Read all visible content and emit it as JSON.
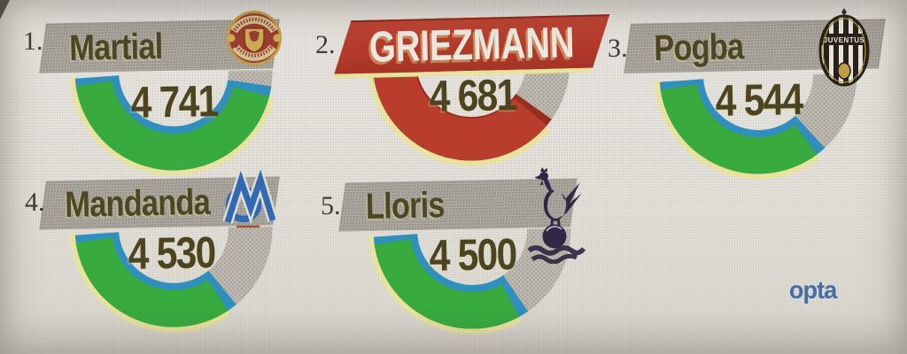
{
  "colors": {
    "green": "#35b13d",
    "blue": "#2d93c6",
    "yellow": "#f2eda2",
    "red": "#bf3a29",
    "maroon": "#992b1b",
    "track": "#c6c2ba",
    "track_dot": "#a19c92",
    "text_olive": "#4c441f",
    "banner_gray": "#d5d1ca",
    "banner_red": "#bb3827",
    "paper": "#e9e6e0",
    "opta_blue": "#2d5fa7"
  },
  "chart_data": {
    "type": "gauge-list",
    "title": "",
    "description": "Five ranked footballers, each with a value shown inside a partial ring gauge; rank 2 is highlighted with a red banner and red arc.",
    "legend_position": "none",
    "players": [
      {
        "rank": "1.",
        "name": "Martial",
        "value": "4 741",
        "value_num": 4741,
        "club": "Manchester United",
        "arc_color_key": "green",
        "banner_style": "gray",
        "arc_end_deg": 13,
        "highlighted": false
      },
      {
        "rank": "2.",
        "name": "GRIEZMANN",
        "value": "4 681",
        "value_num": 4681,
        "club": null,
        "arc_color_key": "red",
        "banner_style": "red",
        "arc_end_deg": 39,
        "highlighted": true
      },
      {
        "rank": "3.",
        "name": "Pogba",
        "value": "4 544",
        "value_num": 4544,
        "club": "Juventus",
        "crest_text": "JUVENTUS",
        "arc_color_key": "green",
        "banner_style": "gray",
        "arc_end_deg": 52,
        "highlighted": false
      },
      {
        "rank": "4.",
        "name": "Mandanda",
        "value": "4 530",
        "value_num": 4530,
        "club": "Olympique de Marseille",
        "arc_color_key": "green",
        "banner_style": "gray",
        "arc_end_deg": 55,
        "highlighted": false
      },
      {
        "rank": "5.",
        "name": "Lloris",
        "value": "4 500",
        "value_num": 4500,
        "club": "Tottenham Hotspur",
        "arc_color_key": "green",
        "banner_style": "gray",
        "arc_end_deg": 60,
        "highlighted": false
      }
    ],
    "source_label": "opta"
  }
}
